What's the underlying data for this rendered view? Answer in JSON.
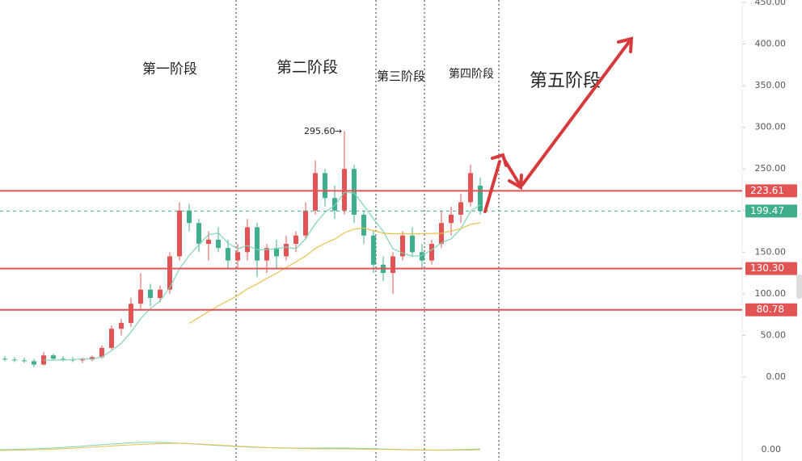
{
  "chart_data": {
    "type": "candlestick",
    "ohlc": [
      [
        22,
        25,
        19,
        21
      ],
      [
        21,
        24,
        18,
        20
      ],
      [
        20,
        23,
        17,
        19
      ],
      [
        19,
        22,
        12,
        15
      ],
      [
        15,
        30,
        14,
        26
      ],
      [
        26,
        28,
        20,
        22
      ],
      [
        22,
        25,
        19,
        21
      ],
      [
        21,
        24,
        18,
        20
      ],
      [
        20,
        23,
        17,
        21
      ],
      [
        21,
        26,
        19,
        24
      ],
      [
        24,
        38,
        22,
        35
      ],
      [
        35,
        62,
        33,
        58
      ],
      [
        58,
        70,
        50,
        65
      ],
      [
        65,
        95,
        60,
        88
      ],
      [
        88,
        125,
        80,
        105
      ],
      [
        105,
        112,
        85,
        95
      ],
      [
        95,
        110,
        90,
        105
      ],
      [
        105,
        150,
        100,
        145
      ],
      [
        145,
        210,
        140,
        200
      ],
      [
        200,
        208,
        175,
        185
      ],
      [
        185,
        190,
        150,
        160
      ],
      [
        160,
        175,
        140,
        165
      ],
      [
        165,
        180,
        150,
        155
      ],
      [
        155,
        165,
        130,
        140
      ],
      [
        140,
        160,
        130,
        150
      ],
      [
        150,
        190,
        140,
        180
      ],
      [
        180,
        185,
        120,
        140
      ],
      [
        140,
        160,
        125,
        155
      ],
      [
        155,
        165,
        130,
        145
      ],
      [
        145,
        170,
        140,
        160
      ],
      [
        160,
        175,
        150,
        170
      ],
      [
        170,
        210,
        165,
        200
      ],
      [
        200,
        260,
        195,
        245
      ],
      [
        245,
        250,
        205,
        215
      ],
      [
        215,
        230,
        190,
        200
      ],
      [
        200,
        295.6,
        195,
        250
      ],
      [
        250,
        255,
        185,
        195
      ],
      [
        195,
        200,
        160,
        170
      ],
      [
        170,
        175,
        125,
        135
      ],
      [
        135,
        145,
        115,
        125
      ],
      [
        125,
        150,
        100,
        145
      ],
      [
        145,
        175,
        140,
        170
      ],
      [
        170,
        180,
        145,
        150
      ],
      [
        150,
        160,
        130,
        140
      ],
      [
        140,
        165,
        135,
        160
      ],
      [
        160,
        200,
        155,
        185
      ],
      [
        185,
        205,
        170,
        195
      ],
      [
        195,
        220,
        185,
        210
      ],
      [
        210,
        255,
        205,
        245
      ],
      [
        230,
        240,
        195,
        199.47
      ]
    ],
    "up_color": "#e25454",
    "down_color": "#3fae8c",
    "moving_averages": [
      {
        "period": 5,
        "color": "#7fd3b8"
      },
      {
        "period": 20,
        "color": "#e8c04a"
      }
    ],
    "ylim": [
      0,
      450
    ],
    "yticks": [
      {
        "value": 0,
        "label": "0.00"
      },
      {
        "value": 50,
        "label": "50.00"
      },
      {
        "value": 100,
        "label": "100.00"
      },
      {
        "value": 150,
        "label": "150.00"
      },
      {
        "value": 200,
        "label": "200.00"
      },
      {
        "value": 250,
        "label": "250.00"
      },
      {
        "value": 300,
        "label": "300.00"
      },
      {
        "value": 350,
        "label": "350.00"
      },
      {
        "value": 400,
        "label": "400.00"
      },
      {
        "value": 450,
        "label": "450.00"
      }
    ],
    "levels": [
      {
        "value": 223.61,
        "label": "223.61"
      },
      {
        "value": 130.3,
        "label": "130.30"
      },
      {
        "value": 80.78,
        "label": "80.78"
      }
    ],
    "level_color": "#e25454",
    "last_price": {
      "value": 199.47,
      "label": "199.47"
    },
    "last_price_color": "#3fae8c",
    "high_annotation": "295.60",
    "phases": [
      "第一阶段",
      "第二阶段",
      "第三阶段",
      "第四阶段",
      "第五阶段"
    ],
    "indicator_tick": "0.00"
  }
}
